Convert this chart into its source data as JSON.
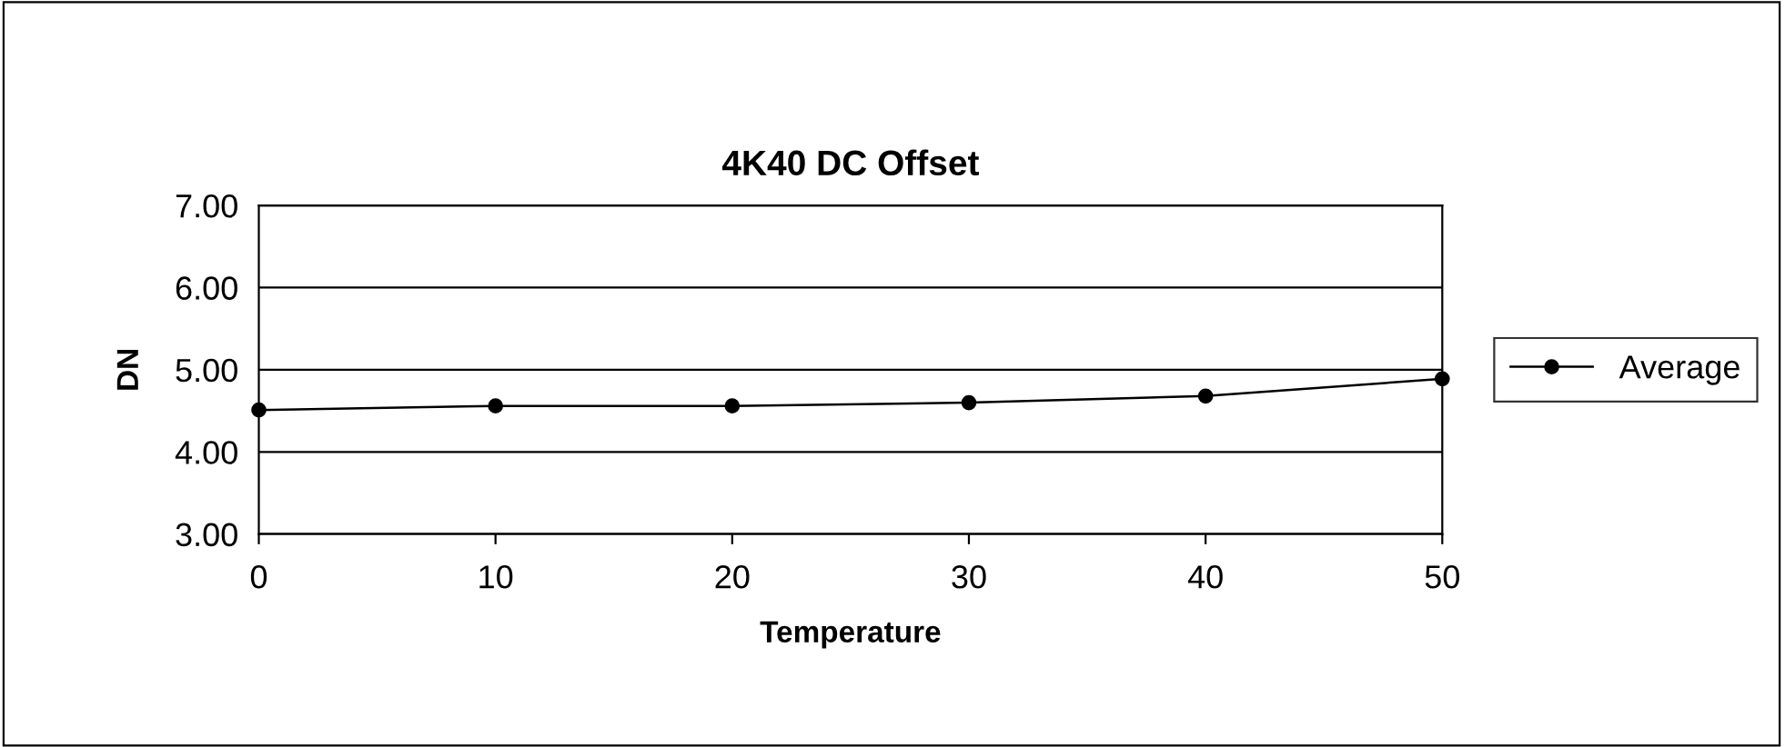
{
  "chart_data": {
    "type": "line",
    "title": "4K40 DC Offset",
    "xlabel": "Temperature",
    "ylabel": "DN",
    "x": [
      0,
      10,
      20,
      30,
      40,
      50
    ],
    "series": [
      {
        "name": "Average",
        "color": "#000000",
        "values": [
          4.51,
          4.56,
          4.56,
          4.6,
          4.68,
          4.89
        ]
      }
    ],
    "xlim": [
      0,
      50
    ],
    "xticks": [
      0,
      10,
      20,
      30,
      40,
      50
    ],
    "ylim": [
      3,
      7
    ],
    "yticks": [
      {
        "value": 3,
        "label": "3.00"
      },
      {
        "value": 4,
        "label": "4.00"
      },
      {
        "value": 5,
        "label": "5.00"
      },
      {
        "value": 6,
        "label": "6.00"
      },
      {
        "value": 7,
        "label": "7.00"
      }
    ],
    "grid": "y",
    "legend": "right",
    "marker": "circle",
    "line_style": "solid"
  }
}
